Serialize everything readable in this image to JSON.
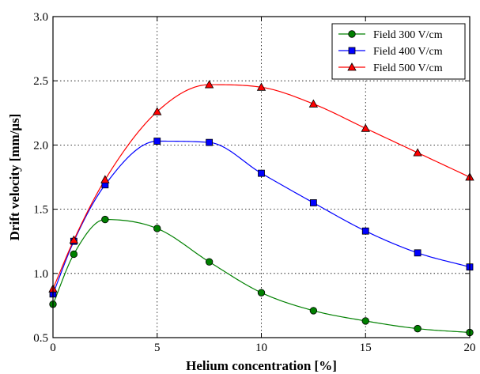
{
  "chart_data": {
    "type": "line",
    "xlabel": "Helium concentration [%]",
    "ylabel": "Drift velocity [mm/μs]",
    "xlim": [
      0,
      20
    ],
    "ylim": [
      0.5,
      3.0
    ],
    "x_ticks": [
      "0",
      "5",
      "10",
      "15",
      "20"
    ],
    "y_ticks": [
      "0.5",
      "1.0",
      "1.5",
      "2.0",
      "2.5",
      "3.0"
    ],
    "grid": true,
    "legend_position": "top-right",
    "series": [
      {
        "name": "Field 300 V/cm",
        "color": "#008000",
        "marker": "circle",
        "x": [
          0,
          1,
          2.5,
          5,
          7.5,
          10,
          12.5,
          15,
          17.5,
          20
        ],
        "y": [
          0.76,
          1.15,
          1.42,
          1.35,
          1.09,
          0.85,
          0.71,
          0.63,
          0.57,
          0.54
        ]
      },
      {
        "name": "Field 400 V/cm",
        "color": "#0000ff",
        "marker": "square",
        "x": [
          0,
          1,
          2.5,
          5,
          7.5,
          10,
          12.5,
          15,
          17.5,
          20
        ],
        "y": [
          0.84,
          1.25,
          1.69,
          2.03,
          2.02,
          1.78,
          1.55,
          1.33,
          1.16,
          1.05
        ]
      },
      {
        "name": "Field 500 V/cm",
        "color": "#ff0000",
        "marker": "triangle",
        "x": [
          0,
          1,
          2.5,
          5,
          7.5,
          10,
          12.5,
          15,
          17.5,
          20
        ],
        "y": [
          0.88,
          1.26,
          1.73,
          2.26,
          2.47,
          2.45,
          2.32,
          2.13,
          1.94,
          1.75
        ]
      }
    ]
  }
}
